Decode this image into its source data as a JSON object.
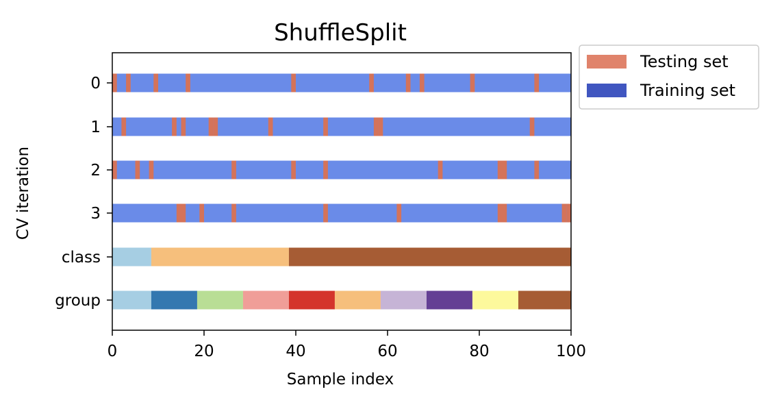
{
  "chart_data": {
    "type": "cv-split-visualization",
    "title": "ShuffleSplit",
    "xlabel": "Sample index",
    "ylabel": "CV iteration",
    "xlim": [
      0,
      100
    ],
    "xticks": [
      0,
      20,
      40,
      60,
      80,
      100
    ],
    "rows": [
      "0",
      "1",
      "2",
      "3",
      "class",
      "group"
    ],
    "colors": {
      "training": "#6a8be8",
      "testing": "#d4735a",
      "legend_training": "#4056c0",
      "legend_testing": "#e0836b"
    },
    "legend": {
      "placement": "outside-top-right",
      "entries": [
        {
          "label": "Testing set",
          "color_key": "legend_testing"
        },
        {
          "label": "Training set",
          "color_key": "legend_training"
        }
      ]
    },
    "cv_iterations": [
      {
        "label": "0",
        "test_indices": [
          0,
          3,
          9,
          16,
          39,
          56,
          64,
          67,
          78,
          92
        ]
      },
      {
        "label": "1",
        "test_indices": [
          2,
          13,
          15,
          21,
          22,
          34,
          46,
          57,
          58,
          91
        ]
      },
      {
        "label": "2",
        "test_indices": [
          0,
          5,
          8,
          26,
          39,
          46,
          71,
          84,
          85,
          92
        ]
      },
      {
        "label": "3",
        "test_indices": [
          14,
          15,
          19,
          26,
          46,
          62,
          84,
          85,
          98,
          99
        ]
      }
    ],
    "class_segments": [
      {
        "start": 0,
        "end": 8.5,
        "color": "#a6cee3"
      },
      {
        "start": 8.5,
        "end": 38.5,
        "color": "#f6bf7c"
      },
      {
        "start": 38.5,
        "end": 100,
        "color": "#a65c34"
      }
    ],
    "group_segments": [
      {
        "start": 0,
        "end": 8.5,
        "color": "#a6cee3"
      },
      {
        "start": 8.5,
        "end": 18.5,
        "color": "#3478b0"
      },
      {
        "start": 18.5,
        "end": 28.5,
        "color": "#b9de95"
      },
      {
        "start": 28.5,
        "end": 38.5,
        "color": "#f09e98"
      },
      {
        "start": 38.5,
        "end": 48.5,
        "color": "#d4342c"
      },
      {
        "start": 48.5,
        "end": 58.5,
        "color": "#f6bf7c"
      },
      {
        "start": 58.5,
        "end": 68.5,
        "color": "#c6b4d6"
      },
      {
        "start": 68.5,
        "end": 78.5,
        "color": "#643f94"
      },
      {
        "start": 78.5,
        "end": 88.5,
        "color": "#fdf99c"
      },
      {
        "start": 88.5,
        "end": 100,
        "color": "#a65c34"
      }
    ]
  }
}
